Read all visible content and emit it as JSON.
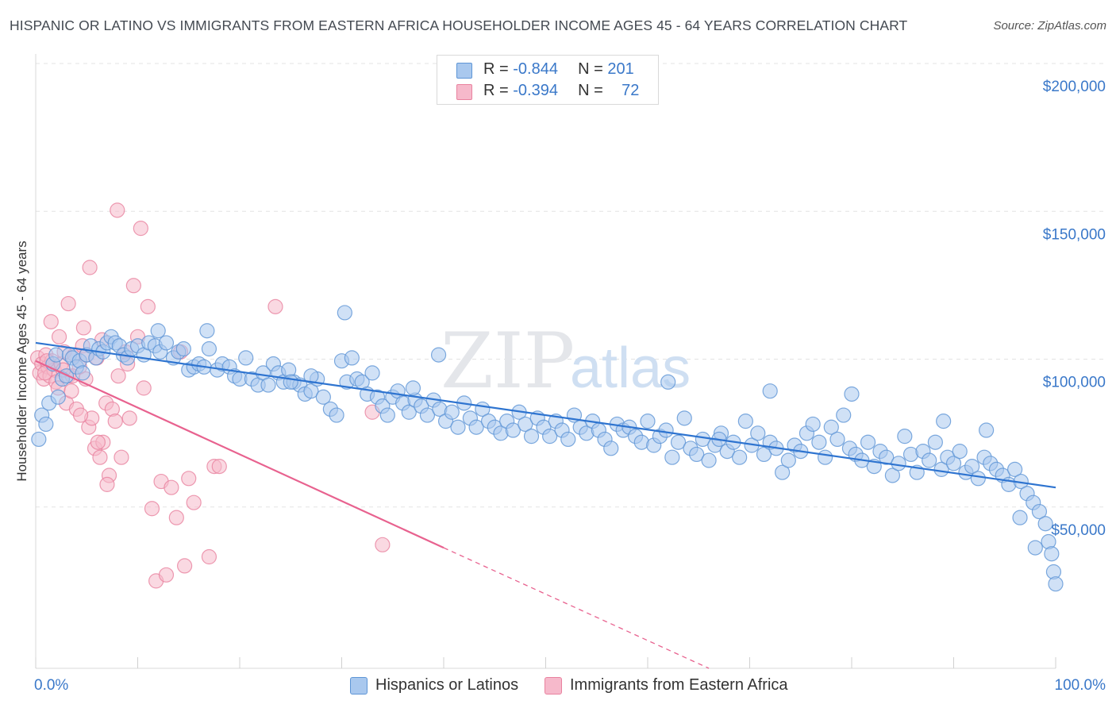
{
  "title": "HISPANIC OR LATINO VS IMMIGRANTS FROM EASTERN AFRICA HOUSEHOLDER INCOME AGES 45 - 64 YEARS CORRELATION CHART",
  "source": "Source: ZipAtlas.com",
  "watermark": {
    "part1": "ZIP",
    "part2": "atlas"
  },
  "legend": {
    "rows": [
      {
        "r_label": "R = ",
        "r_value": "-0.844",
        "n_label": "N = ",
        "n_value": "201",
        "color": "#a9c8ee"
      },
      {
        "r_label": "R = ",
        "r_value": "-0.394",
        "n_label": "N = ",
        "n_value": "72",
        "color": "#f6b9cb"
      }
    ]
  },
  "bottom_legend": [
    {
      "label": "Hispanics or Latinos",
      "color": "#a9c8ee"
    },
    {
      "label": "Immigrants from Eastern Africa",
      "color": "#f6b9cb"
    }
  ],
  "chart_data": {
    "type": "scatter",
    "title": "HISPANIC OR LATINO VS IMMIGRANTS FROM EASTERN AFRICA HOUSEHOLDER INCOME AGES 45 - 64 YEARS CORRELATION CHART",
    "xlabel": "",
    "ylabel": "Householder Income Ages 45 - 64 years",
    "x_tick_labels": [
      "0.0%",
      "100.0%"
    ],
    "y_tick_labels": [
      "$50,000",
      "$100,000",
      "$150,000",
      "$200,000"
    ],
    "y_ticks": [
      50000,
      100000,
      150000,
      200000
    ],
    "xlim": [
      0,
      100
    ],
    "ylim": [
      0,
      205000
    ],
    "grid": true,
    "colors": {
      "blue_fill": "#a9c8ee",
      "blue_stroke": "#5e95d6",
      "blue_line": "#2e74d0",
      "pink_fill": "#f6b9cb",
      "pink_stroke": "#e9829f",
      "pink_line": "#e8628f",
      "tick_label": "#3a78c9"
    },
    "series": [
      {
        "name": "Hispanics or Latinos",
        "stats": {
          "R": -0.844,
          "N": 201
        },
        "trend": {
          "x": [
            0,
            100
          ],
          "y": [
            108000,
            60000
          ]
        },
        "points": [
          [
            0.3,
            76000
          ],
          [
            0.6,
            84000
          ],
          [
            1.0,
            81000
          ],
          [
            1.3,
            88000
          ],
          [
            1.7,
            101000
          ],
          [
            2.0,
            104000
          ],
          [
            2.2,
            90000
          ],
          [
            2.6,
            96000
          ],
          [
            3.0,
            97000
          ],
          [
            3.3,
            104000
          ],
          [
            3.6,
            103000
          ],
          [
            4.0,
            100000
          ],
          [
            4.3,
            102000
          ],
          [
            4.6,
            98000
          ],
          [
            5.0,
            104000
          ],
          [
            5.4,
            107000
          ],
          [
            5.9,
            103000
          ],
          [
            6.2,
            106000
          ],
          [
            6.6,
            105000
          ],
          [
            7.0,
            108000
          ],
          [
            7.4,
            110000
          ],
          [
            7.8,
            108000
          ],
          [
            8.2,
            107000
          ],
          [
            8.6,
            104000
          ],
          [
            9.0,
            103000
          ],
          [
            9.4,
            106000
          ],
          [
            10.0,
            107000
          ],
          [
            10.6,
            104000
          ],
          [
            11.1,
            108000
          ],
          [
            11.7,
            107000
          ],
          [
            12.2,
            105000
          ],
          [
            12.8,
            108000
          ],
          [
            13.5,
            103000
          ],
          [
            14.0,
            105000
          ],
          [
            14.5,
            106000
          ],
          [
            15.0,
            99000
          ],
          [
            15.5,
            100000
          ],
          [
            16.0,
            101000
          ],
          [
            16.5,
            100000
          ],
          [
            17.0,
            106000
          ],
          [
            17.8,
            99000
          ],
          [
            18.3,
            101000
          ],
          [
            19.0,
            100000
          ],
          [
            19.5,
            97000
          ],
          [
            20.0,
            96000
          ],
          [
            20.6,
            103000
          ],
          [
            21.2,
            96000
          ],
          [
            21.8,
            94000
          ],
          [
            22.3,
            98000
          ],
          [
            22.8,
            94000
          ],
          [
            23.3,
            101000
          ],
          [
            23.8,
            98000
          ],
          [
            24.3,
            95000
          ],
          [
            24.8,
            99000
          ],
          [
            25.3,
            95000
          ],
          [
            25.9,
            94000
          ],
          [
            26.4,
            91000
          ],
          [
            27.0,
            92000
          ],
          [
            27.6,
            96000
          ],
          [
            28.2,
            90000
          ],
          [
            28.9,
            86000
          ],
          [
            29.5,
            84000
          ],
          [
            30.0,
            102000
          ],
          [
            30.5,
            95000
          ],
          [
            31.0,
            103000
          ],
          [
            31.5,
            96000
          ],
          [
            32.0,
            95000
          ],
          [
            32.5,
            91000
          ],
          [
            33.0,
            98000
          ],
          [
            33.5,
            90000
          ],
          [
            34.0,
            87000
          ],
          [
            34.5,
            84000
          ],
          [
            35.0,
            90000
          ],
          [
            35.5,
            92000
          ],
          [
            36.0,
            88000
          ],
          [
            36.6,
            85000
          ],
          [
            37.2,
            89000
          ],
          [
            37.8,
            87000
          ],
          [
            38.4,
            84000
          ],
          [
            39.0,
            89000
          ],
          [
            39.6,
            86000
          ],
          [
            40.2,
            82000
          ],
          [
            40.8,
            85000
          ],
          [
            41.4,
            80000
          ],
          [
            42.0,
            88000
          ],
          [
            42.6,
            83000
          ],
          [
            43.2,
            80000
          ],
          [
            43.8,
            86000
          ],
          [
            44.4,
            82000
          ],
          [
            45.0,
            80000
          ],
          [
            45.6,
            78000
          ],
          [
            46.2,
            82000
          ],
          [
            46.8,
            79000
          ],
          [
            47.4,
            85000
          ],
          [
            48.0,
            81000
          ],
          [
            48.6,
            77000
          ],
          [
            49.2,
            83000
          ],
          [
            49.8,
            80000
          ],
          [
            50.4,
            77000
          ],
          [
            51.0,
            82000
          ],
          [
            51.6,
            79000
          ],
          [
            52.2,
            76000
          ],
          [
            52.8,
            84000
          ],
          [
            53.4,
            80000
          ],
          [
            54.0,
            78000
          ],
          [
            54.6,
            82000
          ],
          [
            55.2,
            79000
          ],
          [
            55.8,
            76000
          ],
          [
            56.4,
            73000
          ],
          [
            57.0,
            81000
          ],
          [
            57.6,
            79000
          ],
          [
            58.2,
            80000
          ],
          [
            58.8,
            77000
          ],
          [
            59.4,
            75000
          ],
          [
            60.0,
            82000
          ],
          [
            60.6,
            74000
          ],
          [
            61.2,
            77000
          ],
          [
            61.8,
            79000
          ],
          [
            62.4,
            70000
          ],
          [
            63.0,
            75000
          ],
          [
            63.6,
            83000
          ],
          [
            64.2,
            73000
          ],
          [
            64.8,
            71000
          ],
          [
            65.4,
            76000
          ],
          [
            66.0,
            69000
          ],
          [
            66.6,
            74000
          ],
          [
            67.2,
            78000
          ],
          [
            67.8,
            72000
          ],
          [
            68.4,
            75000
          ],
          [
            69.0,
            70000
          ],
          [
            69.6,
            82000
          ],
          [
            70.2,
            74000
          ],
          [
            70.8,
            78000
          ],
          [
            71.4,
            71000
          ],
          [
            72.0,
            75000
          ],
          [
            72.6,
            73000
          ],
          [
            73.2,
            65000
          ],
          [
            73.8,
            69000
          ],
          [
            74.4,
            74000
          ],
          [
            75.0,
            72000
          ],
          [
            75.6,
            78000
          ],
          [
            76.2,
            81000
          ],
          [
            76.8,
            75000
          ],
          [
            77.4,
            70000
          ],
          [
            78.0,
            80000
          ],
          [
            78.6,
            76000
          ],
          [
            79.2,
            84000
          ],
          [
            79.8,
            73000
          ],
          [
            80.4,
            71000
          ],
          [
            81.0,
            69000
          ],
          [
            81.6,
            75000
          ],
          [
            82.2,
            67000
          ],
          [
            82.8,
            72000
          ],
          [
            83.4,
            70000
          ],
          [
            84.0,
            64000
          ],
          [
            84.6,
            68000
          ],
          [
            85.2,
            77000
          ],
          [
            85.8,
            71000
          ],
          [
            86.4,
            65000
          ],
          [
            87.0,
            72000
          ],
          [
            87.6,
            69000
          ],
          [
            88.2,
            75000
          ],
          [
            88.8,
            66000
          ],
          [
            89.4,
            70000
          ],
          [
            90.0,
            68000
          ],
          [
            90.6,
            72000
          ],
          [
            91.2,
            65000
          ],
          [
            91.8,
            67000
          ],
          [
            92.4,
            63000
          ],
          [
            93.0,
            70000
          ],
          [
            93.6,
            68000
          ],
          [
            94.2,
            66000
          ],
          [
            94.8,
            64000
          ],
          [
            95.4,
            61000
          ],
          [
            96.0,
            66000
          ],
          [
            96.6,
            62000
          ],
          [
            97.2,
            58000
          ],
          [
            97.8,
            55000
          ],
          [
            98.4,
            52000
          ],
          [
            99.0,
            48000
          ],
          [
            99.3,
            42000
          ],
          [
            99.6,
            38000
          ],
          [
            99.8,
            32000
          ],
          [
            100.0,
            28000
          ],
          [
            98.0,
            40000
          ],
          [
            96.5,
            50000
          ],
          [
            30.3,
            118000
          ],
          [
            39.5,
            104000
          ],
          [
            25.0,
            95000
          ],
          [
            12.0,
            112000
          ],
          [
            16.8,
            112000
          ],
          [
            27.0,
            97000
          ],
          [
            37.0,
            93000
          ],
          [
            62.0,
            95000
          ],
          [
            80.0,
            91000
          ],
          [
            72.0,
            92000
          ],
          [
            67.0,
            76000
          ],
          [
            89.0,
            82000
          ],
          [
            93.2,
            79000
          ]
        ]
      },
      {
        "name": "Immigrants from Eastern Africa",
        "stats": {
          "R": -0.394,
          "N": 72
        },
        "trend": {
          "x": [
            0,
            40
          ],
          "y": [
            102000,
            40000
          ]
        },
        "trend_extension": {
          "x": [
            40,
            66
          ],
          "y": [
            40000,
            0
          ]
        },
        "points": [
          [
            0.2,
            103000
          ],
          [
            0.4,
            98000
          ],
          [
            0.6,
            101000
          ],
          [
            0.8,
            96000
          ],
          [
            1.0,
            104000
          ],
          [
            1.2,
            100000
          ],
          [
            1.4,
            97000
          ],
          [
            1.6,
            102000
          ],
          [
            1.8,
            99000
          ],
          [
            2.0,
            95000
          ],
          [
            2.2,
            93000
          ],
          [
            2.5,
            101000
          ],
          [
            2.8,
            105000
          ],
          [
            3.0,
            88000
          ],
          [
            3.2,
            97000
          ],
          [
            3.5,
            92000
          ],
          [
            3.8,
            104000
          ],
          [
            4.0,
            86000
          ],
          [
            4.3,
            100000
          ],
          [
            4.6,
            107000
          ],
          [
            4.9,
            96000
          ],
          [
            5.2,
            80000
          ],
          [
            5.5,
            83000
          ],
          [
            5.8,
            73000
          ],
          [
            6.0,
            103000
          ],
          [
            6.3,
            70000
          ],
          [
            6.6,
            75000
          ],
          [
            6.9,
            88000
          ],
          [
            7.2,
            64000
          ],
          [
            7.5,
            86000
          ],
          [
            7.8,
            82000
          ],
          [
            8.1,
            97000
          ],
          [
            8.4,
            70000
          ],
          [
            8.8,
            105000
          ],
          [
            9.2,
            83000
          ],
          [
            9.6,
            127000
          ],
          [
            10.0,
            110000
          ],
          [
            10.3,
            146000
          ],
          [
            10.6,
            93000
          ],
          [
            11.0,
            120000
          ],
          [
            11.4,
            53000
          ],
          [
            11.8,
            29000
          ],
          [
            12.3,
            62000
          ],
          [
            12.8,
            31000
          ],
          [
            13.3,
            60000
          ],
          [
            13.8,
            50000
          ],
          [
            14.2,
            105000
          ],
          [
            14.6,
            34000
          ],
          [
            15.0,
            63000
          ],
          [
            15.5,
            55000
          ],
          [
            17.0,
            37000
          ],
          [
            17.5,
            67000
          ],
          [
            18.0,
            67000
          ],
          [
            23.5,
            120000
          ],
          [
            33.0,
            85000
          ],
          [
            34.0,
            41000
          ],
          [
            5.3,
            133000
          ],
          [
            8.0,
            152000
          ],
          [
            3.2,
            121000
          ],
          [
            1.5,
            115000
          ],
          [
            2.3,
            110000
          ],
          [
            4.7,
            113000
          ],
          [
            6.5,
            109000
          ],
          [
            9.0,
            101000
          ],
          [
            7.0,
            61000
          ],
          [
            3.6,
            97000
          ],
          [
            1.1,
            102000
          ],
          [
            2.7,
            99000
          ],
          [
            5.0,
            104000
          ],
          [
            0.9,
            98000
          ],
          [
            4.4,
            84000
          ],
          [
            6.1,
            75000
          ]
        ]
      }
    ]
  }
}
